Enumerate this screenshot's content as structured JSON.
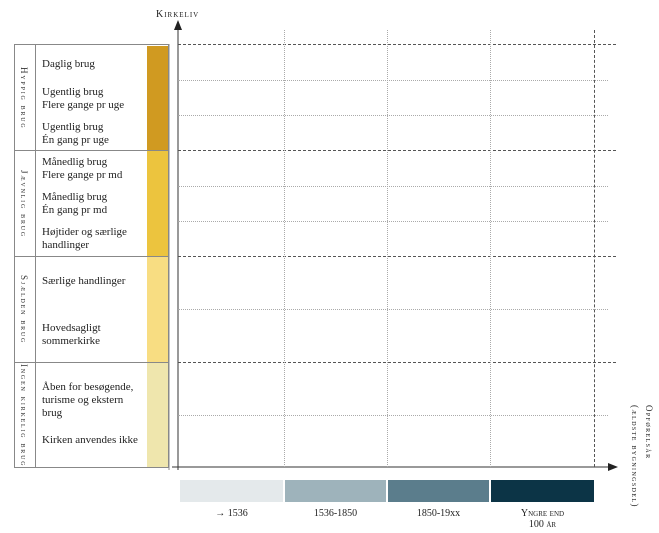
{
  "y_axis_label": "Kirkeliv",
  "x_axis_label_line1": "Opførelsår",
  "x_axis_label_line2": "(ældste bygningsdel)",
  "groups": [
    {
      "label": "Hyppig brug",
      "color": "#d09a21"
    },
    {
      "label": "Jævnlig brug",
      "color": "#ecc43e"
    },
    {
      "label": "Sjælden brug",
      "color": "#f8dd82"
    },
    {
      "label": "Ingen kirkelig brug",
      "color": "#efe6ad"
    }
  ],
  "rows": [
    {
      "label": "Daglig brug",
      "group": 0
    },
    {
      "label": "Ugentlig brug\nFlere gange pr uge",
      "group": 0
    },
    {
      "label": "Ugentlig brug\nÉn gang pr uge",
      "group": 0
    },
    {
      "label": "Månedlig brug\nFlere gange pr md",
      "group": 1
    },
    {
      "label": "Månedlig brug\nÉn gang pr md",
      "group": 1
    },
    {
      "label": "Højtider og særlige\nhandlinger",
      "group": 1
    },
    {
      "label": "Særlige handlinger",
      "group": 2
    },
    {
      "label": "Hovedsagligt\nsommerkirke",
      "group": 2
    },
    {
      "label": "Åben for besøgende,\nturisme og ekstern brug",
      "group": 3
    },
    {
      "label": "Kirken anvendes ikke",
      "group": 3
    }
  ],
  "age_categories": [
    {
      "label": "→ 1536",
      "color": "#e4e9eb"
    },
    {
      "label": "1536-1850",
      "color": "#9eb3bb"
    },
    {
      "label": "1850-19xx",
      "color": "#5b7d8c"
    },
    {
      "label": "Yngre end\n100 år",
      "color": "#0c3446"
    }
  ]
}
